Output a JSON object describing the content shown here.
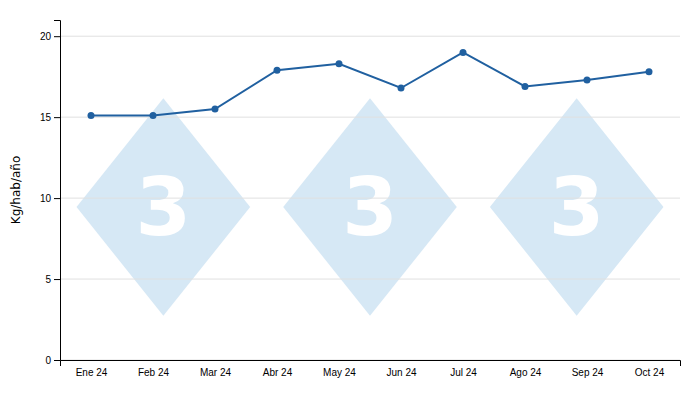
{
  "chart_data": {
    "type": "line",
    "categories": [
      "Ene 24",
      "Feb 24",
      "Mar 24",
      "Abr 24",
      "May 24",
      "Jun 24",
      "Jul 24",
      "Ago 24",
      "Sep 24",
      "Oct 24"
    ],
    "values": [
      15.1,
      15.1,
      15.5,
      17.9,
      18.3,
      16.8,
      19.0,
      16.9,
      17.3,
      17.8
    ],
    "ylabel": "Kg/hab/año",
    "ylim": [
      0,
      21
    ],
    "yticks": [
      0,
      5,
      10,
      15,
      20
    ],
    "color": "#2060a0",
    "marker": "circle",
    "grid": true,
    "annotations": [
      "3",
      "3",
      "3"
    ]
  }
}
